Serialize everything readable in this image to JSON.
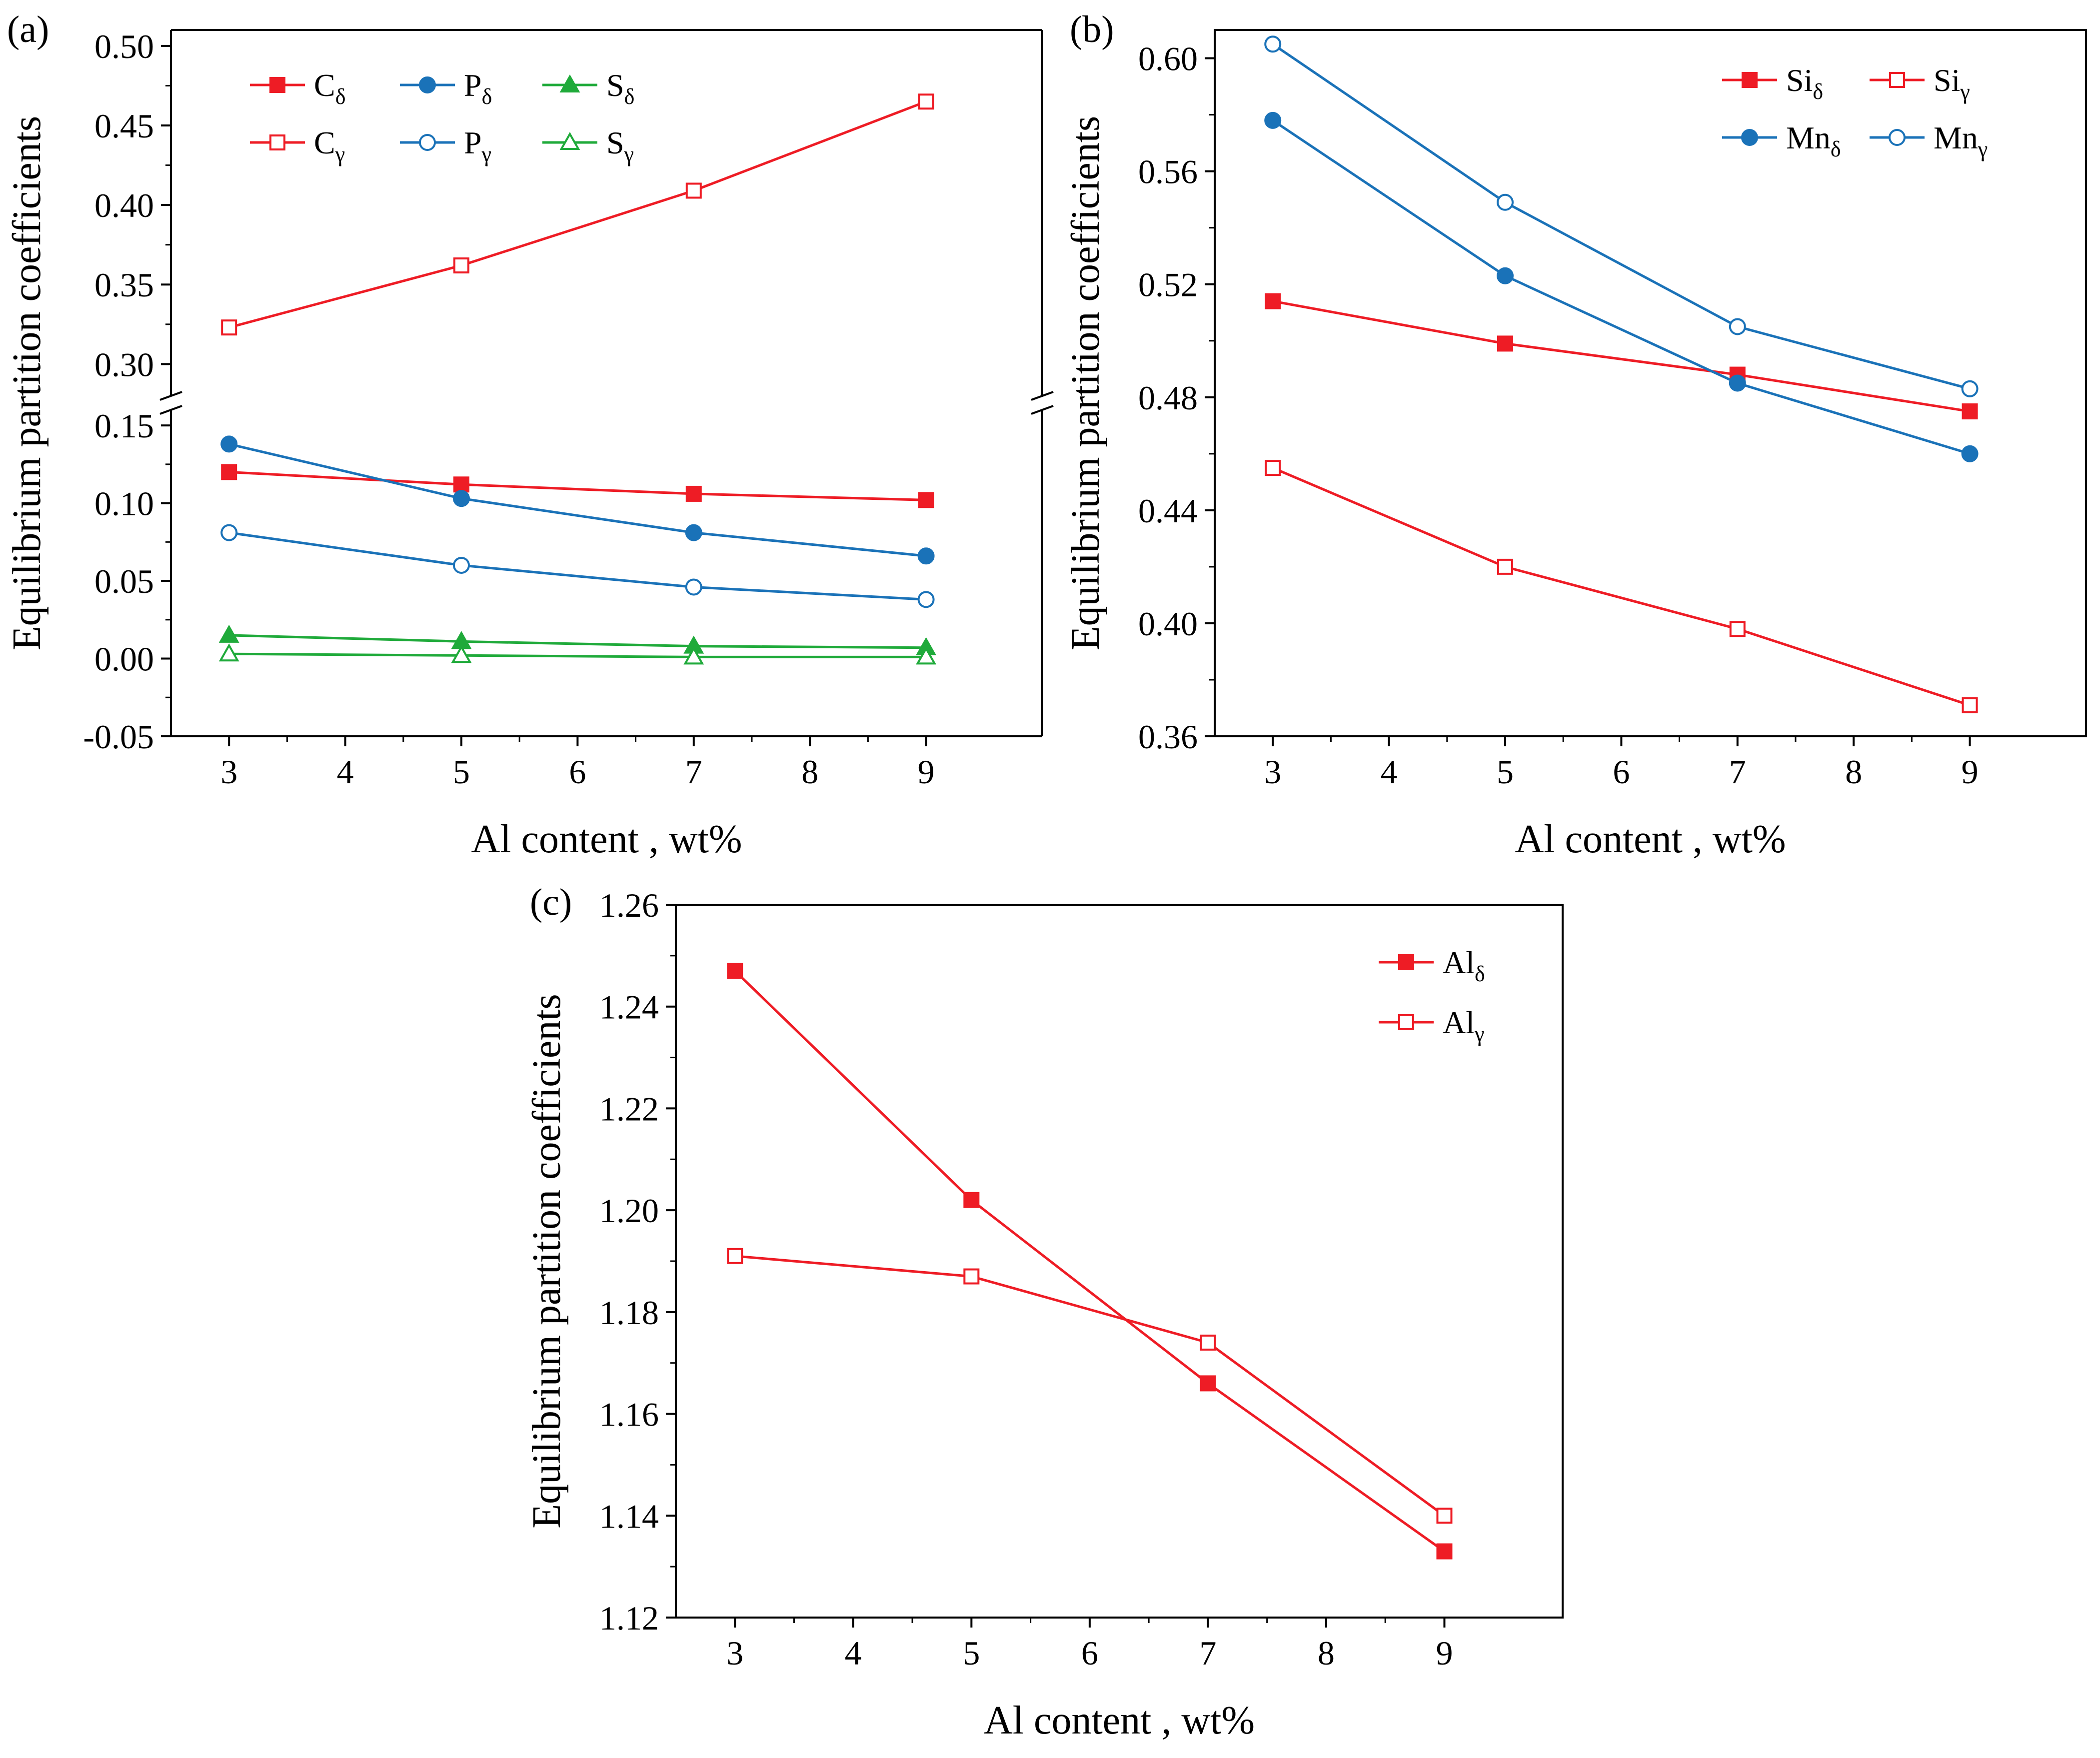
{
  "colors": {
    "red": "#EE1C25",
    "blue": "#1A72B8",
    "green": "#1FAA3A",
    "axis": "#000000"
  },
  "chart_data": [
    {
      "panel": "(a)",
      "type": "line",
      "title": "",
      "xlabel": "Al content , wt%",
      "ylabel": "Equilibrium partition coefficients",
      "xlim": [
        2.5,
        10
      ],
      "xticks": [
        "3",
        "4",
        "5",
        "6",
        "7",
        "8",
        "9"
      ],
      "broken_axis": true,
      "upper_ylim": [
        0.28,
        0.51
      ],
      "upper_yticks": [
        "0.30",
        "0.35",
        "0.40",
        "0.45",
        "0.50"
      ],
      "lower_ylim": [
        -0.05,
        0.16
      ],
      "lower_yticks": [
        "-0.05",
        "0.00",
        "0.05",
        "0.10",
        "0.15"
      ],
      "x": [
        3,
        5,
        7,
        9
      ],
      "legend_position": "top-left",
      "legend_columns": 3,
      "series": [
        {
          "name": "C",
          "sub": "δ",
          "color": "red",
          "marker": "square",
          "filled": true,
          "segment": "lower",
          "values": [
            0.12,
            0.112,
            0.106,
            0.102
          ]
        },
        {
          "name": "P",
          "sub": "δ",
          "color": "blue",
          "marker": "circle",
          "filled": true,
          "segment": "lower",
          "values": [
            0.138,
            0.103,
            0.081,
            0.066
          ]
        },
        {
          "name": "S",
          "sub": "δ",
          "color": "green",
          "marker": "triangle",
          "filled": true,
          "segment": "lower",
          "values": [
            0.015,
            0.011,
            0.008,
            0.007
          ]
        },
        {
          "name": "C",
          "sub": "γ",
          "color": "red",
          "marker": "square",
          "filled": false,
          "segment": "upper",
          "values": [
            0.323,
            0.362,
            0.409,
            0.465
          ]
        },
        {
          "name": "P",
          "sub": "γ",
          "color": "blue",
          "marker": "circle",
          "filled": false,
          "segment": "lower",
          "values": [
            0.081,
            0.06,
            0.046,
            0.038
          ]
        },
        {
          "name": "S",
          "sub": "γ",
          "color": "green",
          "marker": "triangle",
          "filled": false,
          "segment": "lower",
          "values": [
            0.003,
            0.002,
            0.001,
            0.001
          ]
        }
      ]
    },
    {
      "panel": "(b)",
      "type": "line",
      "title": "",
      "xlabel": "Al content , wt%",
      "ylabel": "Equilibrium partition coefficients",
      "xlim": [
        2.5,
        10
      ],
      "xticks": [
        "3",
        "4",
        "5",
        "6",
        "7",
        "8",
        "9"
      ],
      "ylim": [
        0.36,
        0.61
      ],
      "yticks": [
        "0.36",
        "0.40",
        "0.44",
        "0.48",
        "0.52",
        "0.56",
        "0.60"
      ],
      "x": [
        3,
        5,
        7,
        9
      ],
      "legend_position": "top-right",
      "legend_columns": 2,
      "series": [
        {
          "name": "Si",
          "sub": "δ",
          "color": "red",
          "marker": "square",
          "filled": true,
          "values": [
            0.514,
            0.499,
            0.488,
            0.475
          ]
        },
        {
          "name": "Si",
          "sub": "γ",
          "color": "red",
          "marker": "square",
          "filled": false,
          "values": [
            0.455,
            0.42,
            0.398,
            0.371
          ]
        },
        {
          "name": "Mn",
          "sub": "δ",
          "color": "blue",
          "marker": "circle",
          "filled": true,
          "values": [
            0.578,
            0.523,
            0.485,
            0.46
          ]
        },
        {
          "name": "Mn",
          "sub": "γ",
          "color": "blue",
          "marker": "circle",
          "filled": false,
          "values": [
            0.605,
            0.549,
            0.505,
            0.483
          ]
        }
      ]
    },
    {
      "panel": "(c)",
      "type": "line",
      "title": "",
      "xlabel": "Al content , wt%",
      "ylabel": "Equilibrium partition coefficients",
      "xlim": [
        2.5,
        10
      ],
      "xticks": [
        "3",
        "4",
        "5",
        "6",
        "7",
        "8",
        "9"
      ],
      "ylim": [
        1.12,
        1.26
      ],
      "yticks": [
        "1.12",
        "1.14",
        "1.16",
        "1.18",
        "1.20",
        "1.22",
        "1.24",
        "1.26"
      ],
      "x": [
        3,
        5,
        7,
        9
      ],
      "legend_position": "top-right",
      "legend_columns": 1,
      "series": [
        {
          "name": "Al",
          "sub": "δ",
          "color": "red",
          "marker": "square",
          "filled": true,
          "values": [
            1.247,
            1.202,
            1.166,
            1.133
          ]
        },
        {
          "name": "Al",
          "sub": "γ",
          "color": "red",
          "marker": "square",
          "filled": false,
          "values": [
            1.191,
            1.187,
            1.174,
            1.14
          ]
        }
      ]
    }
  ]
}
